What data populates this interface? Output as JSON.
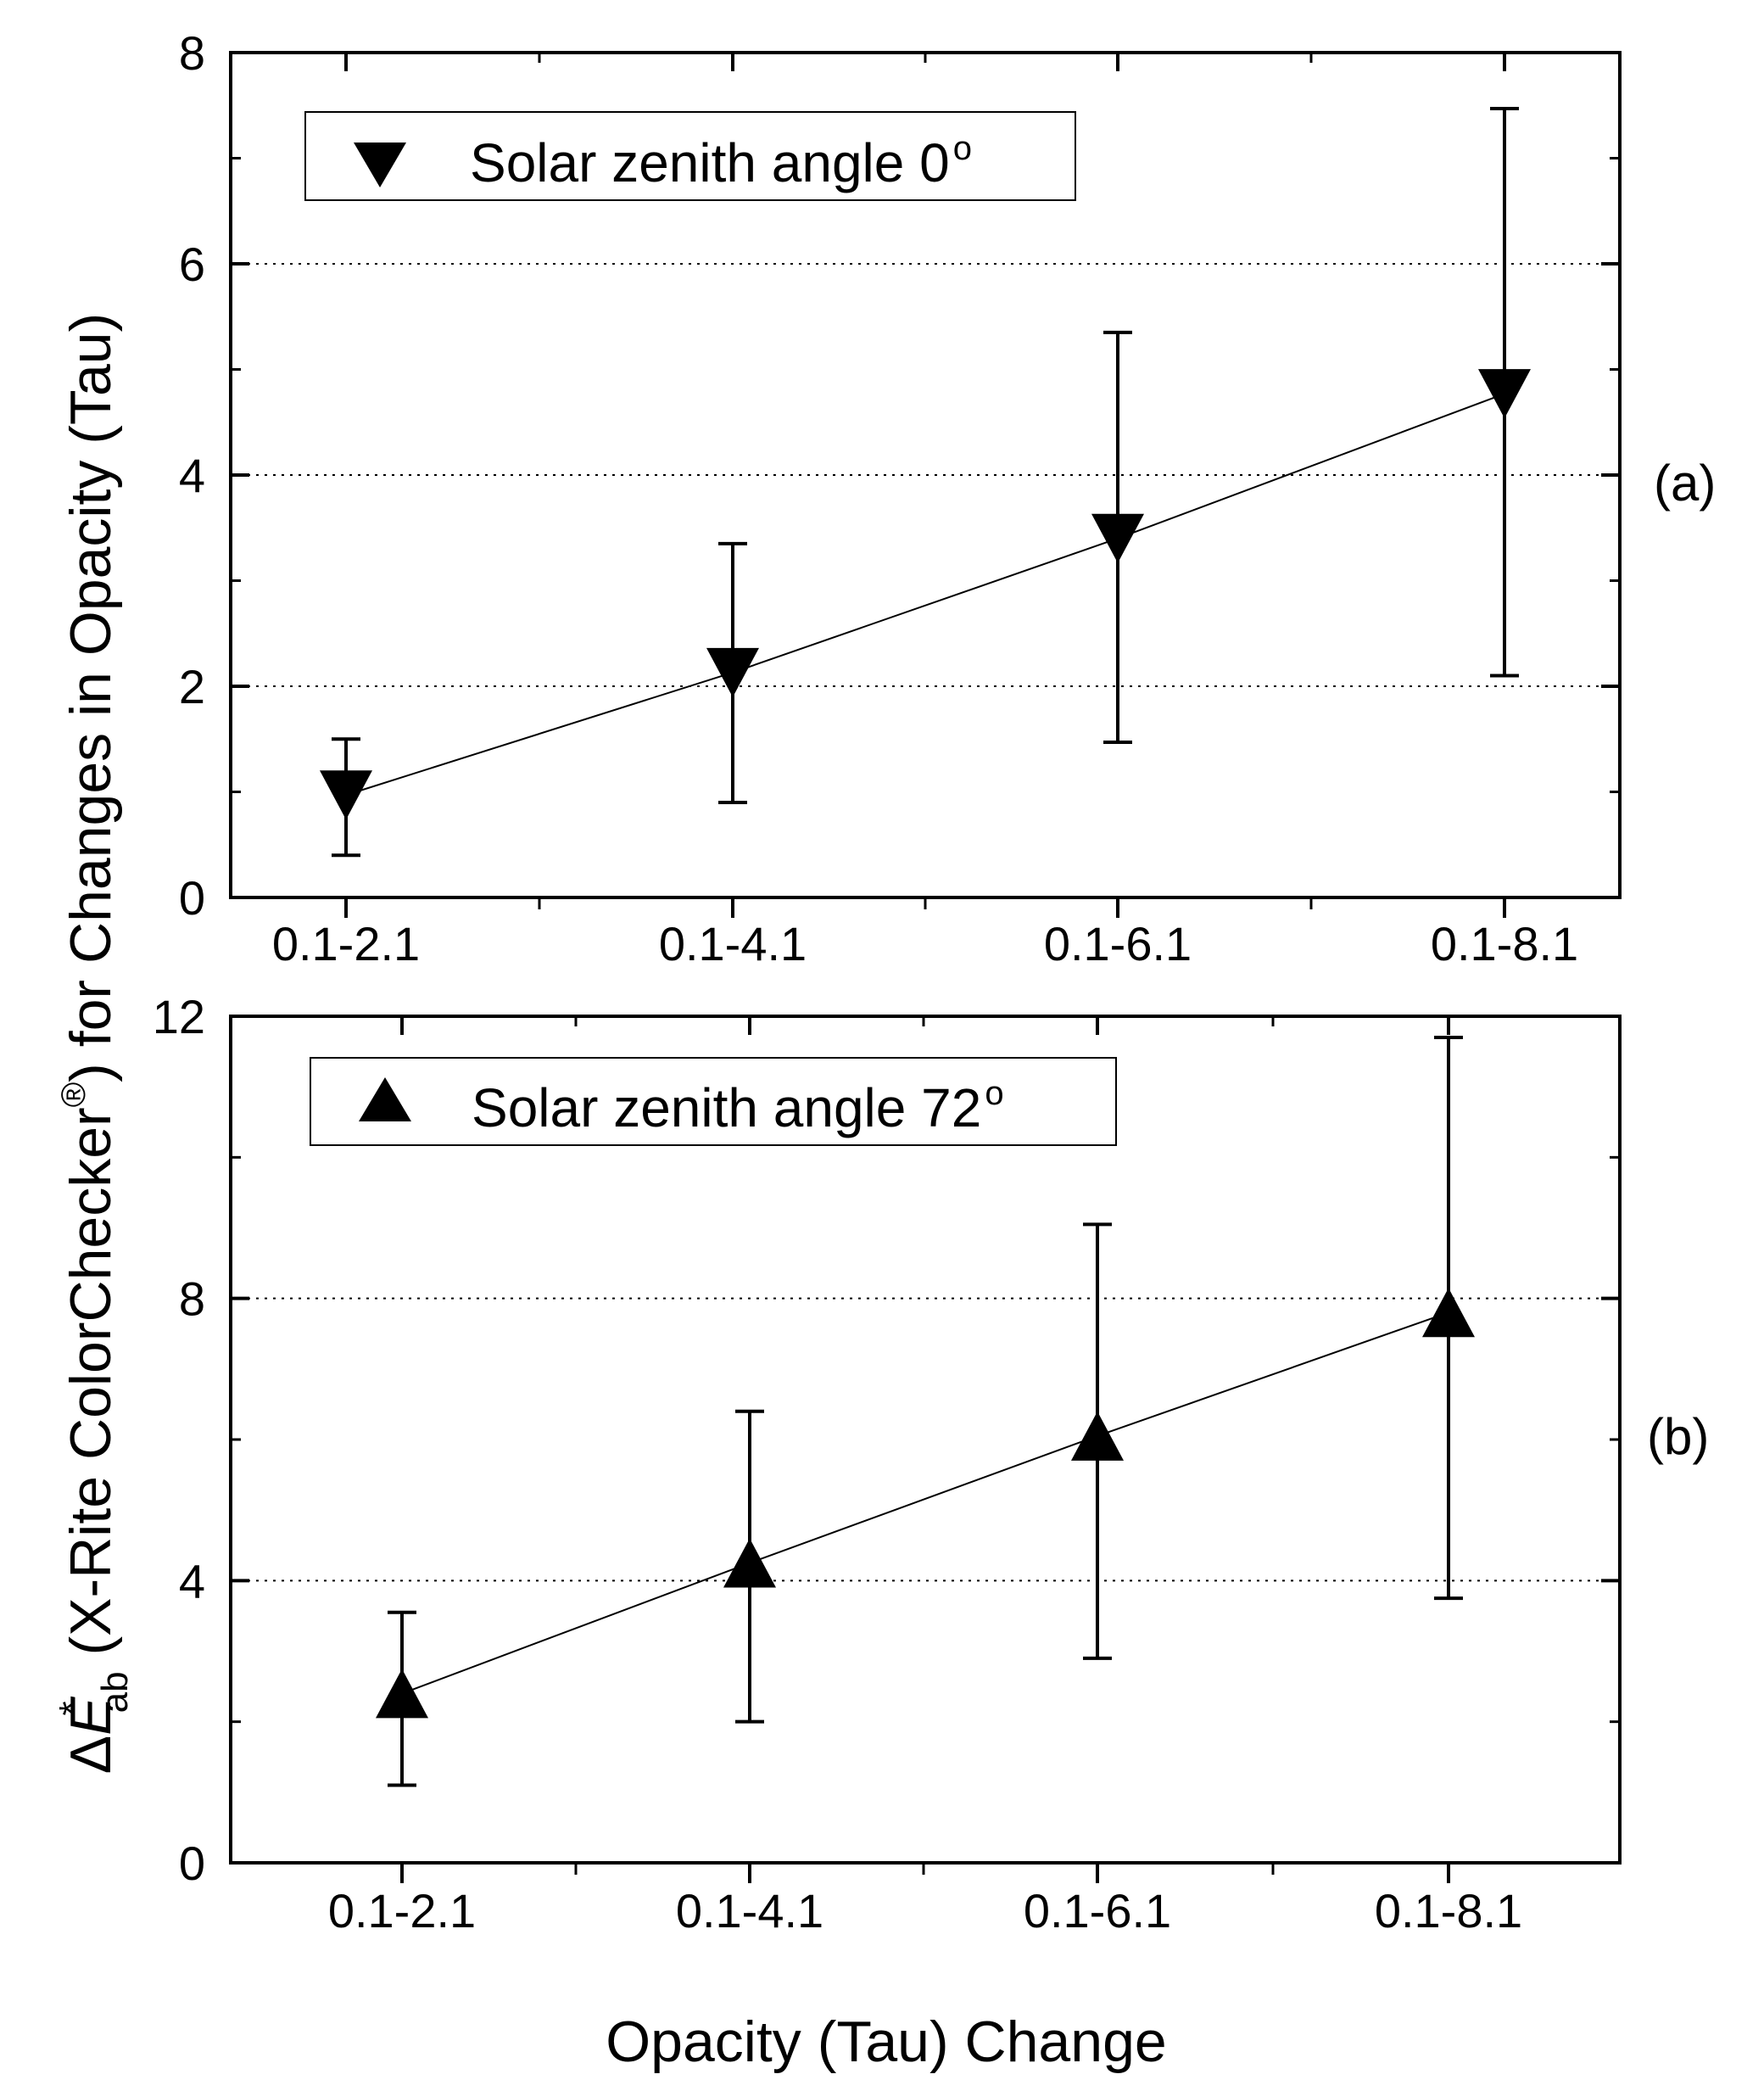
{
  "chart_data": [
    {
      "type": "line",
      "panel_label": "(a)",
      "categories": [
        "0.1-2.1",
        "0.1-4.1",
        "0.1-6.1",
        "0.1-8.1"
      ],
      "series": [
        {
          "name": "Solar zenith angle 0",
          "legend_superscript": "o",
          "marker": "triangle-down",
          "values": [
            0.97,
            2.13,
            3.4,
            4.77
          ],
          "err_upper": [
            1.5,
            3.35,
            5.35,
            7.47
          ],
          "err_lower": [
            0.4,
            0.9,
            1.47,
            2.1
          ]
        }
      ],
      "ylim": [
        0,
        8
      ],
      "yticks": [
        0,
        2,
        4,
        6,
        8
      ],
      "y_minor_ticks": [
        1,
        3,
        5,
        7
      ],
      "grid_y": [
        2,
        4,
        6
      ],
      "grid_style": "dotted",
      "legend_position": "top-left"
    },
    {
      "type": "line",
      "panel_label": "(b)",
      "categories": [
        "0.1-2.1",
        "0.1-4.1",
        "0.1-6.1",
        "0.1-8.1"
      ],
      "series": [
        {
          "name": "Solar zenith angle 72",
          "legend_superscript": "o",
          "marker": "triangle-up",
          "values": [
            2.4,
            4.25,
            6.05,
            7.8
          ],
          "err_upper": [
            3.55,
            6.4,
            9.05,
            11.7
          ],
          "err_lower": [
            1.1,
            2.0,
            2.9,
            3.75
          ]
        }
      ],
      "ylim": [
        0,
        12
      ],
      "yticks": [
        0,
        4,
        8,
        12
      ],
      "y_minor_ticks": [
        2,
        6,
        10
      ],
      "grid_y": [
        4,
        8
      ],
      "grid_style": "dotted",
      "legend_position": "top-left"
    }
  ],
  "ylabel": {
    "delta": "Δ",
    "e": "E",
    "star": "*",
    "sub": "ab",
    "main": " (X-Rite ColorChecker",
    "reg": "®",
    "tail": ") for Changes in Opacity (Tau)"
  },
  "xlabel": "Opacity (Tau) Change"
}
